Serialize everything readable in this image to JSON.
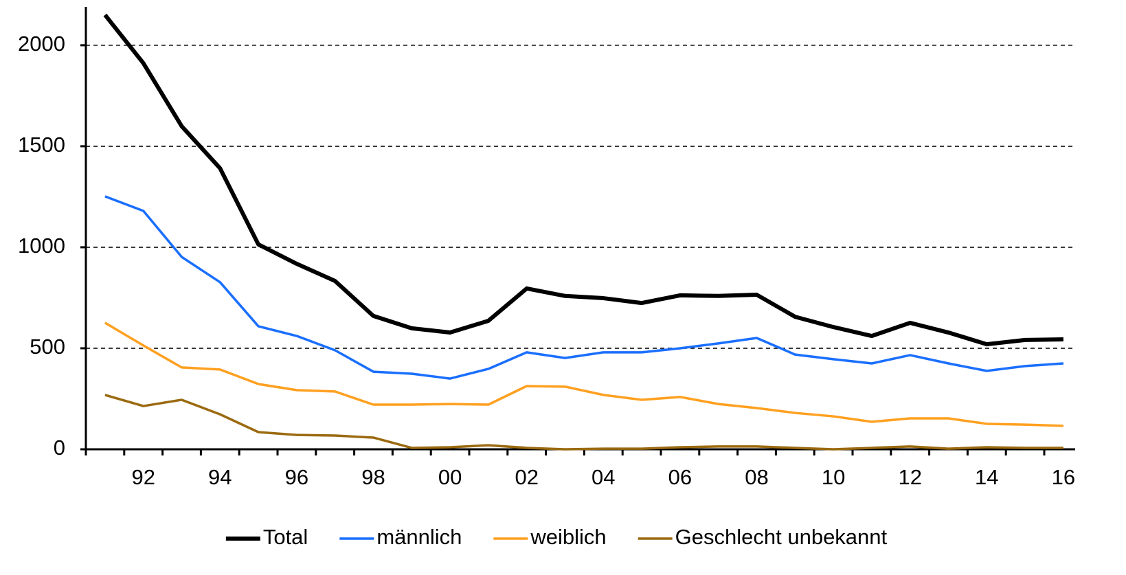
{
  "chart_data": {
    "type": "line",
    "categories": [
      null,
      "92",
      null,
      "94",
      null,
      "96",
      null,
      "98",
      null,
      "00",
      null,
      "02",
      null,
      "04",
      null,
      "06",
      null,
      "08",
      null,
      "10",
      null,
      "12",
      null,
      "14",
      null,
      "16"
    ],
    "series": [
      {
        "name": "Total",
        "color": "#000000",
        "values": [
          2150,
          1911,
          1599,
          1391,
          1014,
          918,
          833,
          660,
          599,
          578,
          636,
          796,
          759,
          748,
          724,
          762,
          759,
          765,
          656,
          605,
          561,
          626,
          578,
          520,
          541,
          544
        ]
      },
      {
        "name": "männlich",
        "color": "#1a6fff",
        "values": [
          1252,
          1180,
          952,
          827,
          609,
          561,
          490,
          384,
          374,
          350,
          398,
          480,
          452,
          480,
          480,
          500,
          524,
          551,
          469,
          446,
          425,
          466,
          425,
          388,
          412,
          425
        ]
      },
      {
        "name": "weiblich",
        "color": "#ffa020",
        "values": [
          626,
          514,
          405,
          395,
          323,
          293,
          286,
          221,
          221,
          224,
          221,
          313,
          310,
          269,
          245,
          259,
          224,
          204,
          180,
          163,
          136,
          153,
          153,
          126,
          122,
          116
        ]
      },
      {
        "name": "Geschlecht unbekannt",
        "color": "#9b6a10",
        "values": [
          269,
          214,
          245,
          173,
          85,
          71,
          68,
          58,
          7,
          10,
          20,
          7,
          0,
          3,
          3,
          10,
          14,
          14,
          7,
          0,
          7,
          14,
          3,
          10,
          7,
          7
        ]
      }
    ],
    "ylim": [
      0,
      2190
    ],
    "yticks": [
      0,
      500,
      1000,
      1500,
      2000
    ],
    "grid": true,
    "legend": "bottom"
  }
}
